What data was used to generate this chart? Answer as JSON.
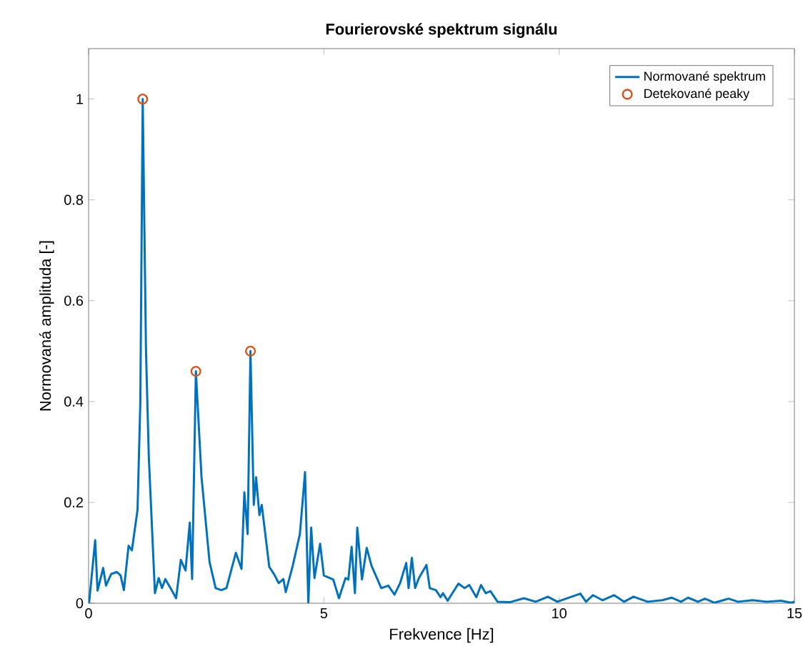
{
  "chart_data": {
    "type": "line",
    "title": "Fourierovské spektrum signálu",
    "xlabel": "Frekvence [Hz]",
    "ylabel": "Normovaná amplituda [-]",
    "xlim": [
      0,
      15
    ],
    "ylim": [
      0,
      1.1
    ],
    "xticks": [
      0,
      5,
      10,
      15
    ],
    "yticks": [
      0,
      0.2,
      0.4,
      0.6,
      0.8,
      1
    ],
    "grid": false,
    "legend": "top right",
    "series": [
      {
        "name": "Normované spektrum",
        "color": "#0072bd",
        "marker": "none",
        "line_style": "solid",
        "x": [
          0.01,
          0.14,
          0.19,
          0.31,
          0.37,
          0.48,
          0.6,
          0.68,
          0.75,
          0.85,
          0.92,
          1.04,
          1.1,
          1.15,
          1.22,
          1.28,
          1.41,
          1.49,
          1.56,
          1.63,
          1.76,
          1.86,
          1.96,
          2.06,
          2.15,
          2.2,
          2.28,
          2.4,
          2.57,
          2.7,
          2.82,
          2.93,
          3.13,
          3.25,
          3.31,
          3.38,
          3.44,
          3.51,
          3.56,
          3.63,
          3.68,
          3.84,
          3.94,
          4.04,
          4.14,
          4.19,
          4.34,
          4.49,
          4.6,
          4.67,
          4.73,
          4.8,
          4.92,
          5.0,
          5.2,
          5.32,
          5.46,
          5.52,
          5.59,
          5.66,
          5.71,
          5.81,
          5.91,
          6.01,
          6.22,
          6.37,
          6.5,
          6.62,
          6.75,
          6.8,
          6.87,
          6.94,
          7.02,
          7.18,
          7.25,
          7.38,
          7.48,
          7.53,
          7.63,
          7.86,
          7.99,
          8.09,
          8.24,
          8.34,
          8.44,
          8.54,
          8.69,
          8.95,
          9.25,
          9.5,
          9.76,
          9.96,
          10.45,
          10.57,
          10.72,
          10.92,
          11.17,
          11.38,
          11.58,
          11.88,
          12.19,
          12.39,
          12.59,
          12.74,
          12.95,
          13.1,
          13.3,
          13.6,
          13.8,
          14.11,
          14.41,
          14.72,
          14.92,
          15
        ],
        "values": [
          0,
          0.125,
          0.025,
          0.07,
          0.035,
          0.058,
          0.062,
          0.055,
          0.026,
          0.114,
          0.105,
          0.185,
          0.4,
          1,
          0.5,
          0.29,
          0.02,
          0.05,
          0.03,
          0.048,
          0.027,
          0.01,
          0.086,
          0.065,
          0.16,
          0.048,
          0.46,
          0.25,
          0.082,
          0.03,
          0.026,
          0.03,
          0.1,
          0.068,
          0.22,
          0.137,
          0.5,
          0.195,
          0.25,
          0.175,
          0.195,
          0.072,
          0.058,
          0.04,
          0.048,
          0.022,
          0.075,
          0.137,
          0.26,
          0,
          0.15,
          0.05,
          0.118,
          0.055,
          0.047,
          0.01,
          0.05,
          0.047,
          0.112,
          0.02,
          0.15,
          0.047,
          0.11,
          0.075,
          0.03,
          0.035,
          0.017,
          0.04,
          0.08,
          0.03,
          0.09,
          0.03,
          0.05,
          0.076,
          0.03,
          0.026,
          0.012,
          0.02,
          0.005,
          0.039,
          0.03,
          0.036,
          0.012,
          0.036,
          0.02,
          0.024,
          0.003,
          0.002,
          0.01,
          0.003,
          0.013,
          0.003,
          0.019,
          0.003,
          0.016,
          0.006,
          0.016,
          0.003,
          0.013,
          0.003,
          0.006,
          0.011,
          0.003,
          0.011,
          0.003,
          0.009,
          0.001,
          0.009,
          0.003,
          0.006,
          0.003,
          0.005,
          0.001,
          0.003
        ]
      },
      {
        "name": "Detekované peaky",
        "type": "scatter",
        "color": "#d95319",
        "marker": "circle",
        "x": [
          1.15,
          2.28,
          3.44
        ],
        "values": [
          1,
          0.46,
          0.5
        ]
      }
    ]
  }
}
